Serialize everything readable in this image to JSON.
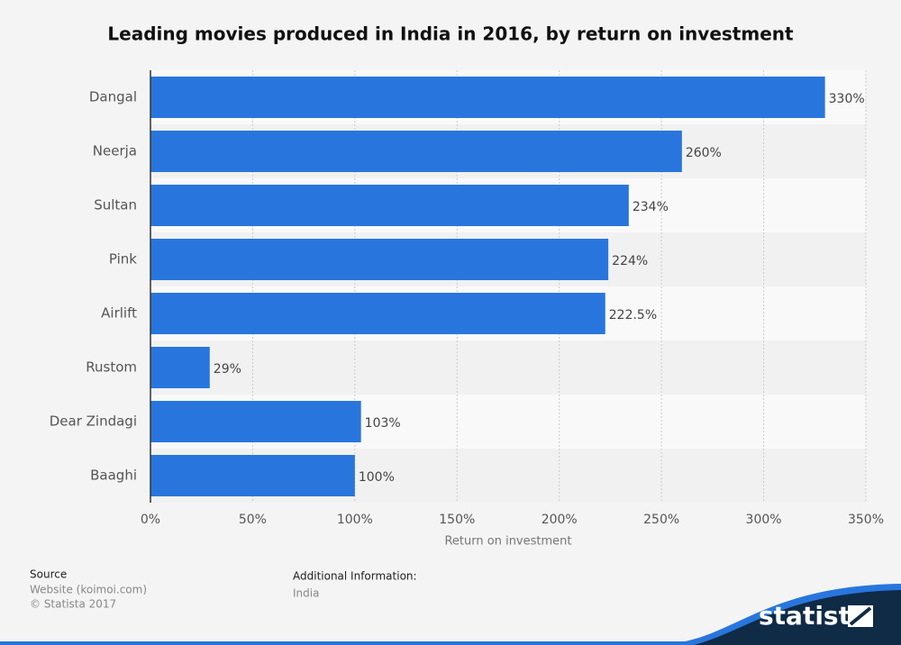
{
  "chart_data": {
    "type": "hbar",
    "title": "Leading movies produced in India in 2016, by return on investment",
    "categories": [
      "Dangal",
      "Neerja",
      "Sultan",
      "Pink",
      "Airlift",
      "Rustom",
      "Dear Zindagi",
      "Baaghi"
    ],
    "values": [
      330,
      260,
      234,
      224,
      222.5,
      29,
      103,
      100
    ],
    "value_labels": [
      "330%",
      "260%",
      "234%",
      "224%",
      "222.5%",
      "29%",
      "103%",
      "100%"
    ],
    "color": "#2876dd",
    "xlabel": "Return on investment",
    "xlim": [
      0,
      350
    ],
    "xticks": [
      {
        "value": 0,
        "label": "0%"
      },
      {
        "value": 50,
        "label": "50%"
      },
      {
        "value": 100,
        "label": "100%"
      },
      {
        "value": 150,
        "label": "150%"
      },
      {
        "value": 200,
        "label": "200%"
      },
      {
        "value": 250,
        "label": "250%"
      },
      {
        "value": 300,
        "label": "300%"
      },
      {
        "value": 350,
        "label": "350%"
      }
    ],
    "grid": true
  },
  "footer": {
    "source_title": "Source",
    "source": "Website (koimoi.com)",
    "copyright": "© Statista 2017",
    "info_title": "Additional Information:",
    "info": "India",
    "logo": "statista"
  }
}
